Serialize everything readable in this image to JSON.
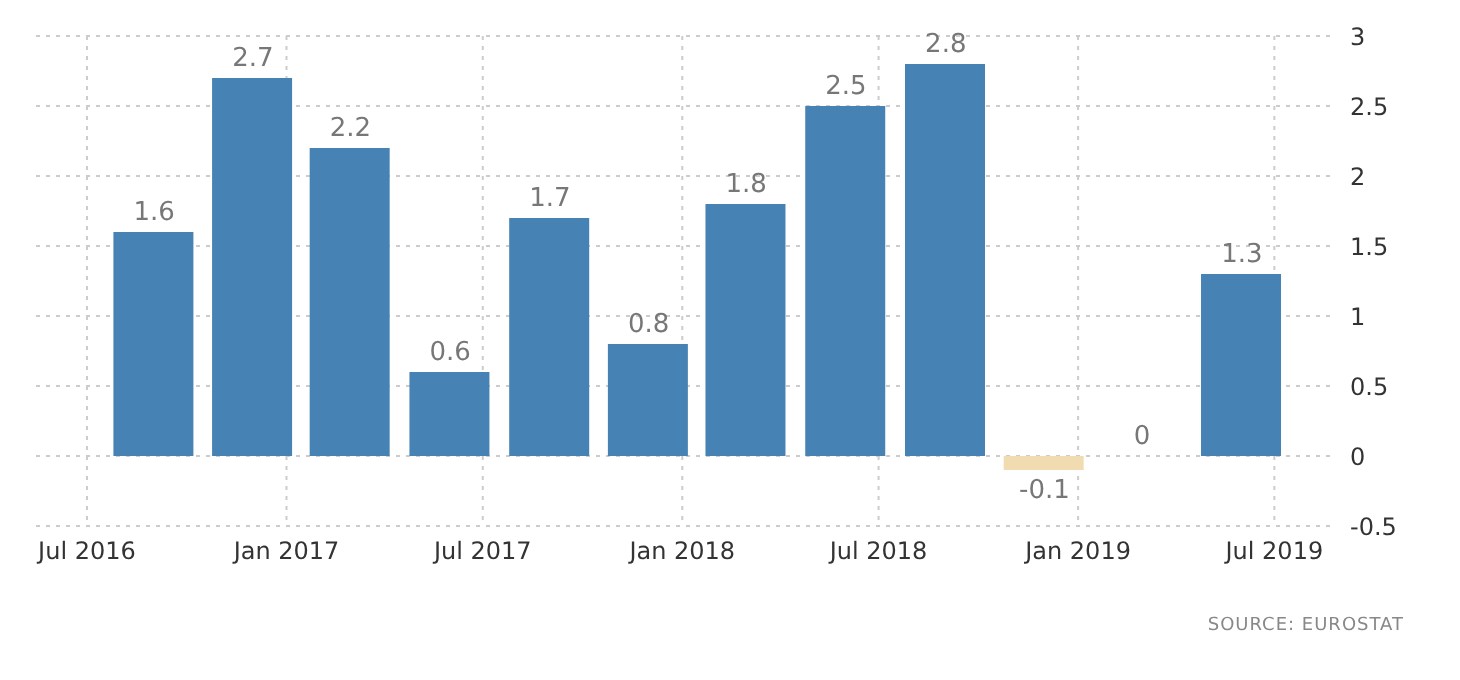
{
  "chart_data": {
    "type": "bar",
    "x": [
      "2016-09",
      "2016-12",
      "2017-03",
      "2017-06",
      "2017-09",
      "2017-12",
      "2018-03",
      "2018-06",
      "2018-09",
      "2018-12",
      "2019-03",
      "2019-06"
    ],
    "values": [
      1.6,
      2.7,
      2.2,
      0.6,
      1.7,
      0.8,
      1.8,
      2.5,
      2.8,
      -0.1,
      0,
      1.3
    ],
    "colors": [
      "#4682b4",
      "#4682b4",
      "#4682b4",
      "#4682b4",
      "#4682b4",
      "#4682b4",
      "#4682b4",
      "#4682b4",
      "#4682b4",
      "#f0dcb0",
      "#4682b4",
      "#4682b4"
    ],
    "xlim": [
      "2016-05-15",
      "2019-08-25"
    ],
    "xticks": [
      {
        "value": "2016-07",
        "label": "Jul 2016"
      },
      {
        "value": "2017-01",
        "label": "Jan 2017"
      },
      {
        "value": "2017-07",
        "label": "Jul 2017"
      },
      {
        "value": "2018-01",
        "label": "Jan 2018"
      },
      {
        "value": "2018-07",
        "label": "Jul 2018"
      },
      {
        "value": "2019-01",
        "label": "Jan 2019"
      },
      {
        "value": "2019-07",
        "label": "Jul 2019"
      }
    ],
    "ylim": [
      -0.5,
      3
    ],
    "yticks": [
      -0.5,
      0,
      0.5,
      1,
      1.5,
      2,
      2.5,
      3
    ],
    "grid": true,
    "data_labels": true,
    "annotations": [
      "SOURCE: EUROSTAT"
    ]
  }
}
